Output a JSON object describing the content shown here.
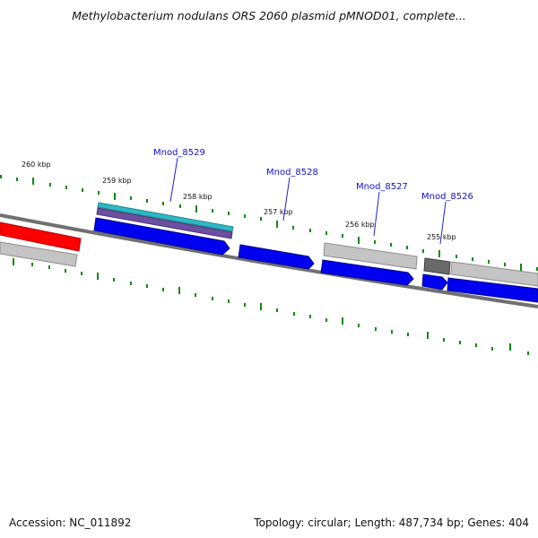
{
  "title": "Methylobacterium nodulans ORS 2060 plasmid pMNOD01, complete...",
  "footer": {
    "accession": "Accession: NC_011892",
    "summary": "Topology: circular; Length: 487,734 bp; Genes: 404"
  },
  "kbp_labels": [
    "260 kbp",
    "259 kbp",
    "258 kbp",
    "257 kbp",
    "256 kbp",
    "255 kbp"
  ],
  "gene_labels": [
    "Mnod_8529",
    "Mnod_8528",
    "Mnod_8527",
    "Mnod_8526"
  ],
  "colors": {
    "cds": "#0000ff",
    "gene": "#c0c0c0",
    "highlight": "#ff0000",
    "repeat": "#30c0c0",
    "ticks": "#008000",
    "backbone": "#808080",
    "gene_label": "#1010c8"
  }
}
